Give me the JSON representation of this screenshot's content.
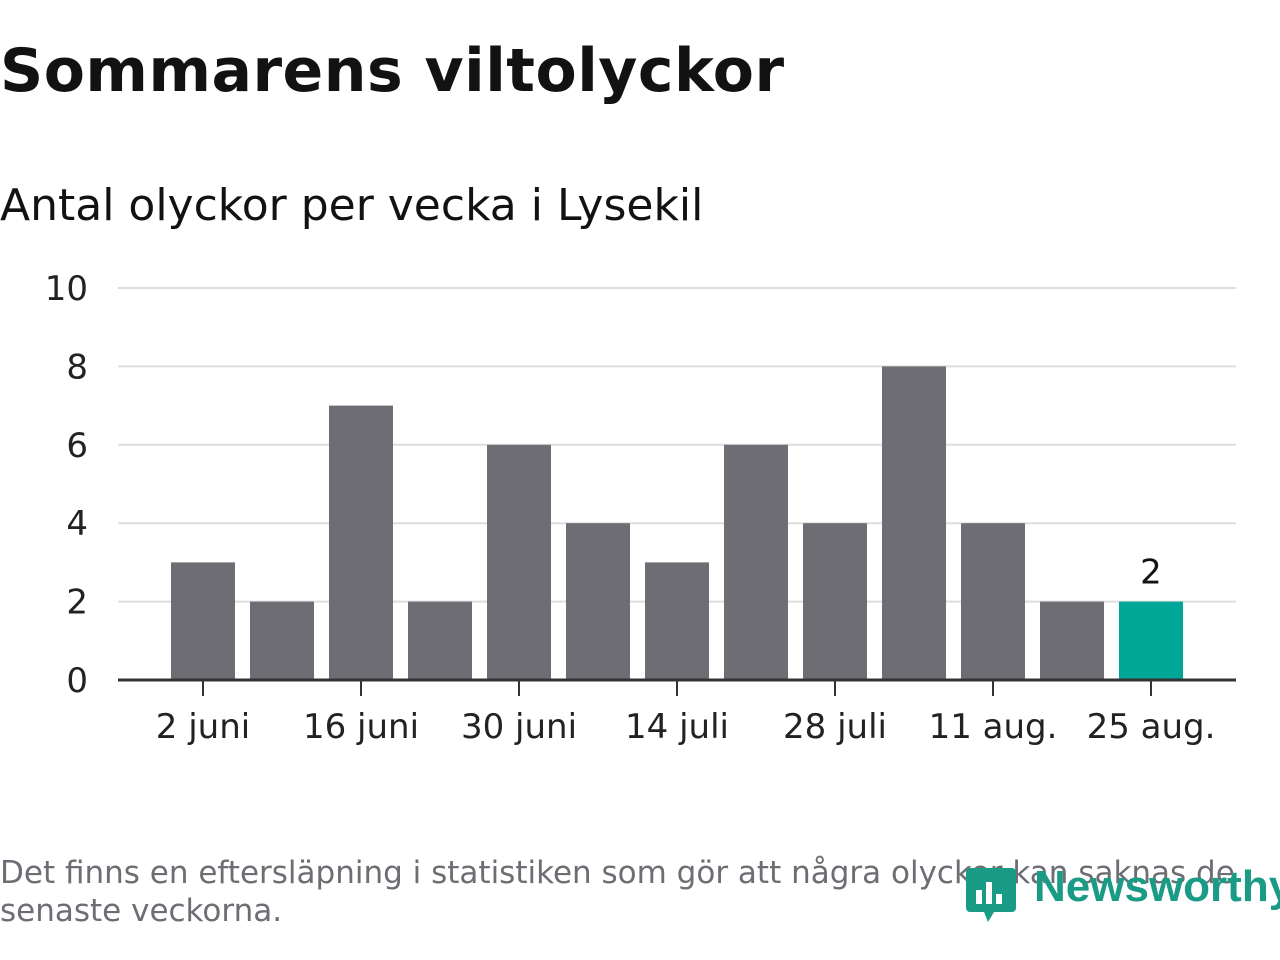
{
  "title": "Sommarens viltolyckor",
  "subtitle": "Antal olyckor per vecka i Lysekil",
  "footnote": "Det finns en eftersläpning i statistiken som gör att några olyckor kan saknas de senaste veckorna.",
  "logo": {
    "text": "Newsworthy",
    "icon": "newsworthy-logo-icon"
  },
  "colors": {
    "bar": "#6e6d73",
    "highlight": "#00a696",
    "grid": "#dddddd",
    "axis": "#333333"
  },
  "chart_data": {
    "type": "bar",
    "categories": [
      "2 juni",
      "9 juni",
      "16 juni",
      "23 juni",
      "30 juni",
      "7 juli",
      "14 juli",
      "21 juli",
      "28 juli",
      "4 aug.",
      "11 aug.",
      "18 aug.",
      "25 aug."
    ],
    "values": [
      3,
      2,
      7,
      2,
      6,
      4,
      3,
      6,
      4,
      8,
      4,
      2,
      2
    ],
    "tick_labels": [
      "2 juni",
      "16 juni",
      "30 juni",
      "14 juli",
      "28 juli",
      "11 aug.",
      "25 aug."
    ],
    "y_ticks": [
      "0",
      "2",
      "4",
      "6",
      "8",
      "10"
    ],
    "ylim": [
      0,
      10
    ],
    "highlight_index": 12,
    "highlight_label": "2",
    "grid": true
  }
}
